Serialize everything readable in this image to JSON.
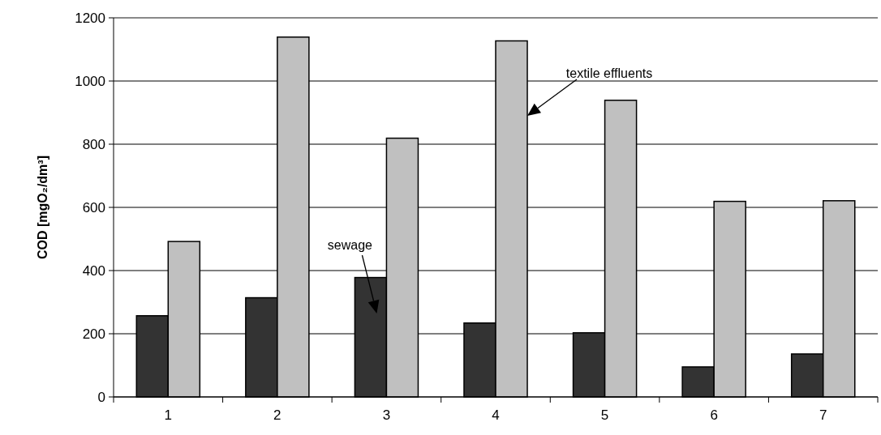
{
  "chart_data": {
    "type": "bar",
    "ylabel": "COD [mgO₂/dm³]",
    "categories": [
      "1",
      "2",
      "3",
      "4",
      "5",
      "6",
      "7"
    ],
    "series": [
      {
        "name": "sewage",
        "color": "#333333",
        "values": [
          257,
          314,
          378,
          234,
          203,
          95,
          136
        ]
      },
      {
        "name": "textile effluents",
        "color": "#c0c0c0",
        "values": [
          492,
          1139,
          819,
          1127,
          939,
          619,
          621
        ]
      }
    ],
    "ylim": [
      0,
      1200
    ],
    "yticks": [
      0,
      200,
      400,
      600,
      800,
      1000,
      1200
    ],
    "grid": "y"
  }
}
